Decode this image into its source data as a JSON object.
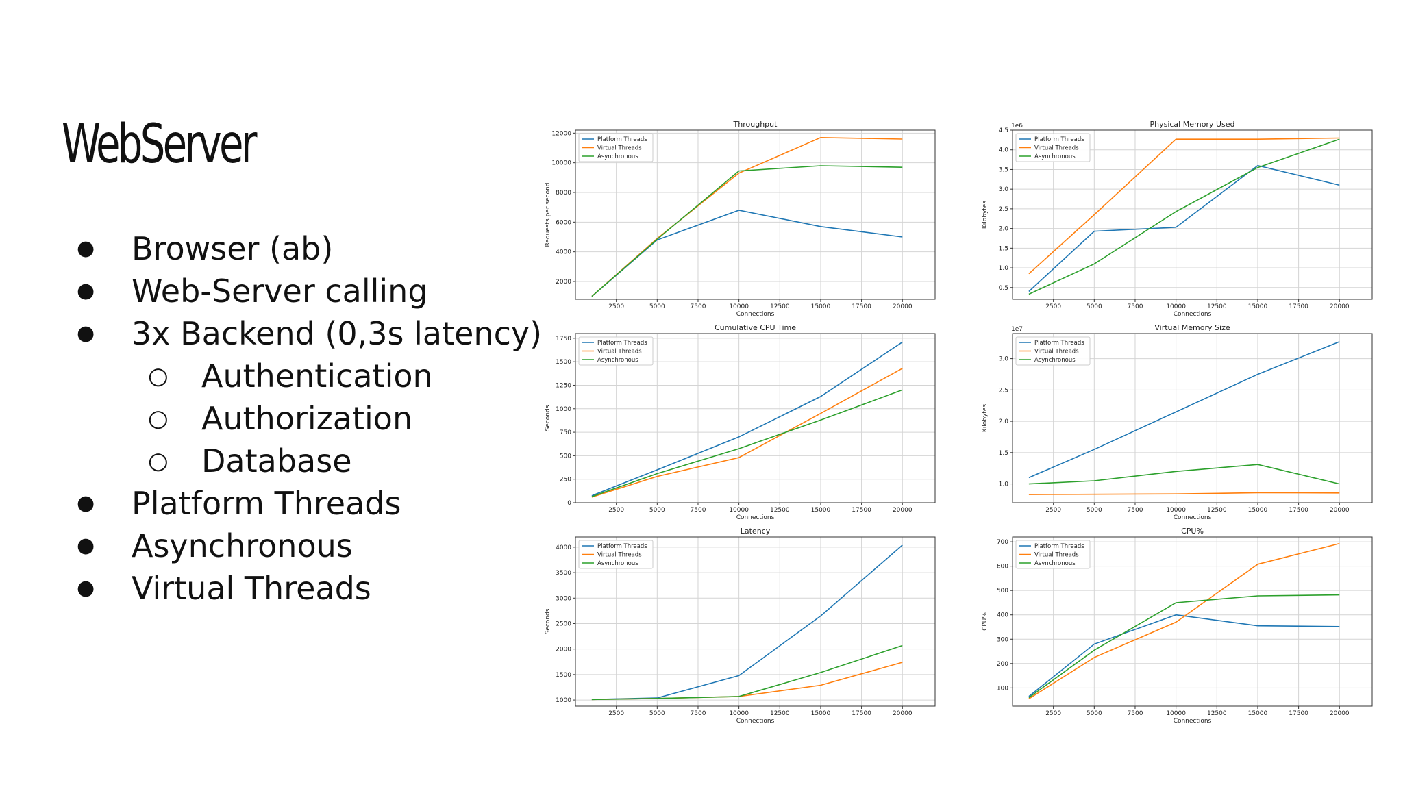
{
  "slide": {
    "title": "WebServer",
    "bullets": [
      {
        "level": 0,
        "text": "Browser (ab)"
      },
      {
        "level": 0,
        "text": "Web-Server calling"
      },
      {
        "level": 0,
        "text": "3x Backend (0,3s latency)"
      },
      {
        "level": 1,
        "text": "Authentication"
      },
      {
        "level": 1,
        "text": "Authorization"
      },
      {
        "level": 1,
        "text": "Database"
      },
      {
        "level": 0,
        "text": "Platform Threads"
      },
      {
        "level": 0,
        "text": "Asynchronous"
      },
      {
        "level": 0,
        "text": "Virtual Threads"
      }
    ]
  },
  "colors": {
    "platform": "#1f77b4",
    "virtual": "#ff7f0e",
    "async": "#2ca02c"
  },
  "chart_data": [
    {
      "type": "line",
      "title": "Throughput",
      "xlabel": "Connections",
      "ylabel": "Requests per second",
      "x": [
        1000,
        5000,
        10000,
        15000,
        20000
      ],
      "xticks": [
        2500,
        5000,
        7500,
        10000,
        12500,
        15000,
        17500,
        20000
      ],
      "yticks": [
        "2000",
        "4000",
        "6000",
        "8000",
        "10000",
        "12000"
      ],
      "ytick_values": [
        2000,
        4000,
        6000,
        8000,
        10000,
        12000
      ],
      "xlim": [
        0,
        22000
      ],
      "ylim": [
        800,
        12200
      ],
      "legend": "top-left",
      "grid": true,
      "series": [
        {
          "name": "Platform Threads",
          "values": [
            1000,
            4800,
            6800,
            5700,
            5000
          ]
        },
        {
          "name": "Virtual Threads",
          "values": [
            1000,
            4900,
            9300,
            11700,
            11600
          ]
        },
        {
          "name": "Asynchronous",
          "values": [
            1000,
            4850,
            9450,
            9800,
            9700
          ]
        }
      ]
    },
    {
      "type": "line",
      "title": "Physical Memory Used",
      "xlabel": "Connections",
      "ylabel": "Kilobytes",
      "scale_label": "1e6",
      "x": [
        1000,
        5000,
        10000,
        15000,
        20000
      ],
      "xticks": [
        2500,
        5000,
        7500,
        10000,
        12500,
        15000,
        17500,
        20000
      ],
      "yticks": [
        "0.5",
        "1.0",
        "1.5",
        "2.0",
        "2.5",
        "3.0",
        "3.5",
        "4.0",
        "4.5"
      ],
      "ytick_values": [
        0.5,
        1.0,
        1.5,
        2.0,
        2.5,
        3.0,
        3.5,
        4.0,
        4.5
      ],
      "xlim": [
        0,
        22000
      ],
      "ylim": [
        0.2,
        4.5
      ],
      "legend": "top-left",
      "grid": true,
      "series": [
        {
          "name": "Platform Threads",
          "values": [
            0.4,
            1.93,
            2.03,
            3.6,
            3.1
          ]
        },
        {
          "name": "Virtual Threads",
          "values": [
            0.85,
            2.35,
            4.27,
            4.27,
            4.3
          ]
        },
        {
          "name": "Asynchronous",
          "values": [
            0.33,
            1.1,
            2.43,
            3.55,
            4.27
          ]
        }
      ]
    },
    {
      "type": "line",
      "title": "Cumulative CPU Time",
      "xlabel": "Connections",
      "ylabel": "Seconds",
      "x": [
        1000,
        5000,
        10000,
        15000,
        20000
      ],
      "xticks": [
        2500,
        5000,
        7500,
        10000,
        12500,
        15000,
        17500,
        20000
      ],
      "yticks": [
        "0",
        "250",
        "500",
        "750",
        "1000",
        "1250",
        "1500",
        "1750"
      ],
      "ytick_values": [
        0,
        250,
        500,
        750,
        1000,
        1250,
        1500,
        1750
      ],
      "xlim": [
        0,
        22000
      ],
      "ylim": [
        0,
        1800
      ],
      "legend": "top-left",
      "grid": true,
      "series": [
        {
          "name": "Platform Threads",
          "values": [
            75,
            350,
            700,
            1130,
            1710
          ]
        },
        {
          "name": "Virtual Threads",
          "values": [
            60,
            280,
            480,
            950,
            1430
          ]
        },
        {
          "name": "Asynchronous",
          "values": [
            65,
            310,
            575,
            880,
            1200
          ]
        }
      ]
    },
    {
      "type": "line",
      "title": "Virtual Memory Size",
      "xlabel": "Connections",
      "ylabel": "Kilobytes",
      "scale_label": "1e7",
      "x": [
        1000,
        5000,
        10000,
        15000,
        20000
      ],
      "xticks": [
        2500,
        5000,
        7500,
        10000,
        12500,
        15000,
        17500,
        20000
      ],
      "yticks": [
        "1.0",
        "1.5",
        "2.0",
        "2.5",
        "3.0"
      ],
      "ytick_values": [
        1.0,
        1.5,
        2.0,
        2.5,
        3.0
      ],
      "xlim": [
        0,
        22000
      ],
      "ylim": [
        0.7,
        3.4
      ],
      "legend": "top-left",
      "grid": true,
      "series": [
        {
          "name": "Platform Threads",
          "values": [
            1.1,
            1.55,
            2.15,
            2.75,
            3.27
          ]
        },
        {
          "name": "Virtual Threads",
          "values": [
            0.83,
            0.835,
            0.84,
            0.86,
            0.855
          ]
        },
        {
          "name": "Asynchronous",
          "values": [
            1.0,
            1.05,
            1.2,
            1.31,
            1.0
          ]
        }
      ]
    },
    {
      "type": "line",
      "title": "Latency",
      "xlabel": "Connections",
      "ylabel": "Seconds",
      "x": [
        1000,
        5000,
        10000,
        15000,
        20000
      ],
      "xticks": [
        2500,
        5000,
        7500,
        10000,
        12500,
        15000,
        17500,
        20000
      ],
      "yticks": [
        "1000",
        "1500",
        "2000",
        "2500",
        "3000",
        "3500",
        "4000"
      ],
      "ytick_values": [
        1000,
        1500,
        2000,
        2500,
        3000,
        3500,
        4000
      ],
      "xlim": [
        0,
        22000
      ],
      "ylim": [
        880,
        4200
      ],
      "legend": "top-left",
      "grid": true,
      "series": [
        {
          "name": "Platform Threads",
          "values": [
            1010,
            1040,
            1480,
            2650,
            4040
          ]
        },
        {
          "name": "Virtual Threads",
          "values": [
            1010,
            1030,
            1070,
            1290,
            1740
          ]
        },
        {
          "name": "Asynchronous",
          "values": [
            1010,
            1030,
            1070,
            1540,
            2070
          ]
        }
      ]
    },
    {
      "type": "line",
      "title": "CPU%",
      "xlabel": "Connections",
      "ylabel": "CPU%",
      "x": [
        1000,
        5000,
        10000,
        15000,
        20000
      ],
      "xticks": [
        2500,
        5000,
        7500,
        10000,
        12500,
        15000,
        17500,
        20000
      ],
      "yticks": [
        "100",
        "200",
        "300",
        "400",
        "500",
        "600",
        "700"
      ],
      "ytick_values": [
        100,
        200,
        300,
        400,
        500,
        600,
        700
      ],
      "xlim": [
        0,
        22000
      ],
      "ylim": [
        25,
        720
      ],
      "legend": "top-left",
      "grid": true,
      "series": [
        {
          "name": "Platform Threads",
          "values": [
            65,
            280,
            400,
            355,
            352
          ]
        },
        {
          "name": "Virtual Threads",
          "values": [
            55,
            225,
            370,
            608,
            693
          ]
        },
        {
          "name": "Asynchronous",
          "values": [
            60,
            255,
            450,
            478,
            482
          ]
        }
      ]
    }
  ]
}
